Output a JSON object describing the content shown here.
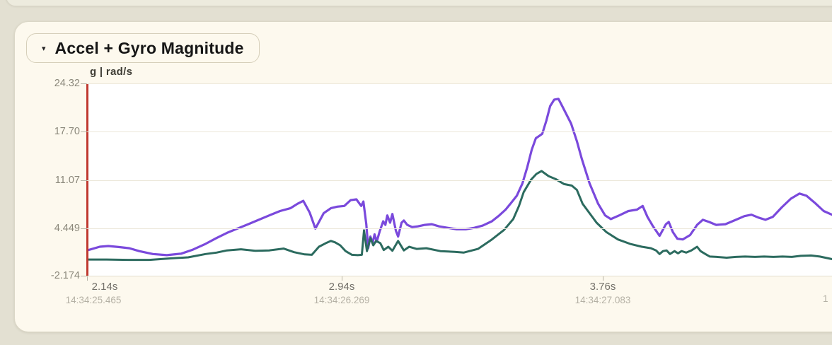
{
  "theme": {
    "page_bg": "#e3e0d2",
    "card_bg": "#fdf9ee",
    "plot_bg": "#ffffff",
    "grid_color": "#ece7d9",
    "y_axis_line_color": "#c0392f",
    "purple_series_color": "#7a49dc",
    "teal_series_color": "#2c6b5f"
  },
  "panel": {
    "caret": "▾",
    "title": "Accel + Gyro Magnitude"
  },
  "chart_data": {
    "type": "line",
    "title": "Accel + Gyro Magnitude",
    "ylabel": "g | rad/s",
    "xlabel": "",
    "grid": "horizontal",
    "legend": "none",
    "y_domain": [
      -2.174,
      24.32
    ],
    "x_domain_seconds": [
      2.14,
      4.48
    ],
    "y_ticks": [
      {
        "label": "24.32",
        "value": 24.32
      },
      {
        "label": "17.70",
        "value": 17.7
      },
      {
        "label": "11.07",
        "value": 11.07
      },
      {
        "label": "4.449",
        "value": 4.449
      },
      {
        "label": "-2.174",
        "value": -2.174
      }
    ],
    "x_ticks": [
      {
        "label": "2.14s",
        "time": "14:34:25.465",
        "value": 2.14
      },
      {
        "label": "2.94s",
        "time": "14:34:26.269",
        "value": 2.94
      },
      {
        "label": "3.76s",
        "time": "14:34:27.083",
        "value": 3.76
      }
    ],
    "clipped_x_time_label": "1",
    "series": [
      {
        "name": "series-1-purple",
        "color": "#7a49dc",
        "width": 3.2,
        "points": [
          [
            2.14,
            1.4
          ],
          [
            2.18,
            1.9
          ],
          [
            2.207,
            2.0
          ],
          [
            2.242,
            1.85
          ],
          [
            2.273,
            1.7
          ],
          [
            2.304,
            1.3
          ],
          [
            2.347,
            0.9
          ],
          [
            2.391,
            0.75
          ],
          [
            2.436,
            0.95
          ],
          [
            2.473,
            1.5
          ],
          [
            2.513,
            2.3
          ],
          [
            2.547,
            3.1
          ],
          [
            2.58,
            3.8
          ],
          [
            2.613,
            4.4
          ],
          [
            2.647,
            5.0
          ],
          [
            2.68,
            5.6
          ],
          [
            2.713,
            6.2
          ],
          [
            2.747,
            6.8
          ],
          [
            2.78,
            7.2
          ],
          [
            2.802,
            7.8
          ],
          [
            2.82,
            8.2
          ],
          [
            2.84,
            6.6
          ],
          [
            2.858,
            4.4
          ],
          [
            2.884,
            6.5
          ],
          [
            2.907,
            7.2
          ],
          [
            2.927,
            7.4
          ],
          [
            2.949,
            7.5
          ],
          [
            2.969,
            8.3
          ],
          [
            2.987,
            8.4
          ],
          [
            3.002,
            7.5
          ],
          [
            3.009,
            8.1
          ],
          [
            3.018,
            5.0
          ],
          [
            3.024,
            1.7
          ],
          [
            3.031,
            3.3
          ],
          [
            3.038,
            2.4
          ],
          [
            3.044,
            3.6
          ],
          [
            3.051,
            2.6
          ],
          [
            3.06,
            4.0
          ],
          [
            3.071,
            5.4
          ],
          [
            3.078,
            4.9
          ],
          [
            3.084,
            6.2
          ],
          [
            3.093,
            5.2
          ],
          [
            3.1,
            6.4
          ],
          [
            3.111,
            4.1
          ],
          [
            3.118,
            3.3
          ],
          [
            3.129,
            5.2
          ],
          [
            3.136,
            5.5
          ],
          [
            3.147,
            4.9
          ],
          [
            3.162,
            4.6
          ],
          [
            3.18,
            4.7
          ],
          [
            3.202,
            4.9
          ],
          [
            3.224,
            5.0
          ],
          [
            3.247,
            4.7
          ],
          [
            3.273,
            4.5
          ],
          [
            3.302,
            4.3
          ],
          [
            3.331,
            4.3
          ],
          [
            3.358,
            4.5
          ],
          [
            3.384,
            4.8
          ],
          [
            3.413,
            5.4
          ],
          [
            3.436,
            6.2
          ],
          [
            3.456,
            7.0
          ],
          [
            3.473,
            7.9
          ],
          [
            3.491,
            8.9
          ],
          [
            3.509,
            10.6
          ],
          [
            3.524,
            12.8
          ],
          [
            3.538,
            15.2
          ],
          [
            3.551,
            16.8
          ],
          [
            3.558,
            17.0
          ],
          [
            3.571,
            17.4
          ],
          [
            3.584,
            19.2
          ],
          [
            3.596,
            21.2
          ],
          [
            3.609,
            22.1
          ],
          [
            3.622,
            22.2
          ],
          [
            3.633,
            21.3
          ],
          [
            3.647,
            20.1
          ],
          [
            3.662,
            18.8
          ],
          [
            3.68,
            16.4
          ],
          [
            3.696,
            13.9
          ],
          [
            3.72,
            10.6
          ],
          [
            3.747,
            7.8
          ],
          [
            3.769,
            6.2
          ],
          [
            3.787,
            5.7
          ],
          [
            3.813,
            6.2
          ],
          [
            3.842,
            6.8
          ],
          [
            3.869,
            7.0
          ],
          [
            3.887,
            7.5
          ],
          [
            3.902,
            6.0
          ],
          [
            3.918,
            4.8
          ],
          [
            3.94,
            3.4
          ],
          [
            3.96,
            5.0
          ],
          [
            3.969,
            5.3
          ],
          [
            3.982,
            3.9
          ],
          [
            3.996,
            3.0
          ],
          [
            4.013,
            2.9
          ],
          [
            4.036,
            3.5
          ],
          [
            4.058,
            4.9
          ],
          [
            4.076,
            5.6
          ],
          [
            4.096,
            5.3
          ],
          [
            4.118,
            4.9
          ],
          [
            4.147,
            5.0
          ],
          [
            4.18,
            5.6
          ],
          [
            4.207,
            6.1
          ],
          [
            4.229,
            6.3
          ],
          [
            4.251,
            5.9
          ],
          [
            4.273,
            5.6
          ],
          [
            4.296,
            6.0
          ],
          [
            4.324,
            7.3
          ],
          [
            4.353,
            8.5
          ],
          [
            4.38,
            9.2
          ],
          [
            4.402,
            8.9
          ],
          [
            4.429,
            7.9
          ],
          [
            4.456,
            6.8
          ],
          [
            4.482,
            6.3
          ]
        ]
      },
      {
        "name": "series-2-teal",
        "color": "#2c6b5f",
        "width": 3.0,
        "points": [
          [
            2.14,
            0.15
          ],
          [
            2.202,
            0.15
          ],
          [
            2.269,
            0.1
          ],
          [
            2.336,
            0.1
          ],
          [
            2.402,
            0.3
          ],
          [
            2.458,
            0.45
          ],
          [
            2.513,
            0.9
          ],
          [
            2.547,
            1.1
          ],
          [
            2.58,
            1.4
          ],
          [
            2.624,
            1.55
          ],
          [
            2.669,
            1.35
          ],
          [
            2.713,
            1.4
          ],
          [
            2.758,
            1.65
          ],
          [
            2.791,
            1.15
          ],
          [
            2.824,
            0.85
          ],
          [
            2.847,
            0.8
          ],
          [
            2.869,
            1.9
          ],
          [
            2.891,
            2.4
          ],
          [
            2.907,
            2.7
          ],
          [
            2.92,
            2.5
          ],
          [
            2.936,
            2.1
          ],
          [
            2.953,
            1.3
          ],
          [
            2.973,
            0.8
          ],
          [
            2.991,
            0.75
          ],
          [
            3.004,
            0.8
          ],
          [
            3.011,
            4.15
          ],
          [
            3.02,
            1.3
          ],
          [
            3.031,
            3.1
          ],
          [
            3.04,
            2.1
          ],
          [
            3.049,
            2.7
          ],
          [
            3.062,
            2.4
          ],
          [
            3.073,
            1.45
          ],
          [
            3.087,
            1.9
          ],
          [
            3.1,
            1.35
          ],
          [
            3.118,
            2.7
          ],
          [
            3.136,
            1.4
          ],
          [
            3.153,
            1.9
          ],
          [
            3.176,
            1.6
          ],
          [
            3.207,
            1.7
          ],
          [
            3.251,
            1.3
          ],
          [
            3.296,
            1.2
          ],
          [
            3.324,
            1.1
          ],
          [
            3.369,
            1.6
          ],
          [
            3.413,
            2.9
          ],
          [
            3.451,
            4.2
          ],
          [
            3.48,
            5.7
          ],
          [
            3.498,
            7.5
          ],
          [
            3.513,
            9.4
          ],
          [
            3.536,
            11.1
          ],
          [
            3.553,
            11.9
          ],
          [
            3.569,
            12.3
          ],
          [
            3.591,
            11.6
          ],
          [
            3.613,
            11.2
          ],
          [
            3.64,
            10.5
          ],
          [
            3.664,
            10.3
          ],
          [
            3.68,
            9.7
          ],
          [
            3.698,
            7.8
          ],
          [
            3.72,
            6.5
          ],
          [
            3.742,
            5.2
          ],
          [
            3.773,
            3.9
          ],
          [
            3.809,
            2.9
          ],
          [
            3.847,
            2.3
          ],
          [
            3.884,
            1.9
          ],
          [
            3.913,
            1.7
          ],
          [
            3.929,
            1.4
          ],
          [
            3.94,
            0.9
          ],
          [
            3.951,
            1.3
          ],
          [
            3.962,
            1.4
          ],
          [
            3.973,
            0.9
          ],
          [
            3.987,
            1.3
          ],
          [
            3.998,
            1.0
          ],
          [
            4.009,
            1.3
          ],
          [
            4.024,
            1.1
          ],
          [
            4.04,
            1.4
          ],
          [
            4.058,
            1.9
          ],
          [
            4.069,
            1.3
          ],
          [
            4.084,
            0.9
          ],
          [
            4.098,
            0.55
          ],
          [
            4.12,
            0.5
          ],
          [
            4.151,
            0.4
          ],
          [
            4.18,
            0.5
          ],
          [
            4.209,
            0.55
          ],
          [
            4.24,
            0.5
          ],
          [
            4.269,
            0.55
          ],
          [
            4.298,
            0.5
          ],
          [
            4.327,
            0.55
          ],
          [
            4.356,
            0.5
          ],
          [
            4.384,
            0.65
          ],
          [
            4.416,
            0.7
          ],
          [
            4.444,
            0.55
          ],
          [
            4.482,
            0.2
          ]
        ]
      }
    ]
  }
}
